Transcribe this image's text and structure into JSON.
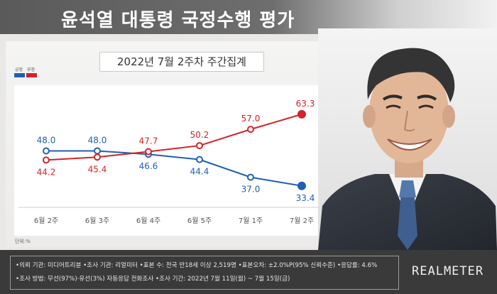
{
  "header": {
    "title": "윤석열 대통령 국정수행 평가"
  },
  "subtitle": "2022년 7월 2주차 주간집계",
  "unit_label": "단위:%",
  "chart_data": {
    "type": "line",
    "categories": [
      "6월 2주",
      "6월 3주",
      "6월 4주",
      "6월 5주",
      "7월 1주",
      "7월 2주"
    ],
    "series": [
      {
        "name": "긍정",
        "color": "#1f5fb5",
        "values": [
          48.0,
          48.0,
          46.6,
          44.4,
          37.0,
          33.4
        ]
      },
      {
        "name": "부정",
        "color": "#d2232a",
        "values": [
          44.2,
          45.4,
          47.7,
          50.2,
          57.0,
          63.3
        ]
      }
    ],
    "value_labels": {
      "긍정": [
        "48.0",
        "48.0",
        "46.6",
        "44.4",
        "37.0",
        "33.4"
      ],
      "부정": [
        "44.2",
        "45.4",
        "47.7",
        "50.2",
        "57.0",
        "63.3"
      ]
    },
    "ylim": [
      28,
      68
    ],
    "grid": false,
    "legend": "top-left"
  },
  "footer": {
    "line1": "•의뢰 기관: 미디어트리뷴 •조사 기관: 리얼미터 •표본 수: 전국 만18세 이상 2,519명 •표본오차: ±2.0%P(95% 신뢰수준) •응답률: 4.6%",
    "line2": "•조사 방법: 무선(97%)·유선(3%) 자동응답 전화조사 •조사 기간: 2022년 7월 11일(월) ~ 7월 15일(금)",
    "brand": "REALMETER"
  }
}
